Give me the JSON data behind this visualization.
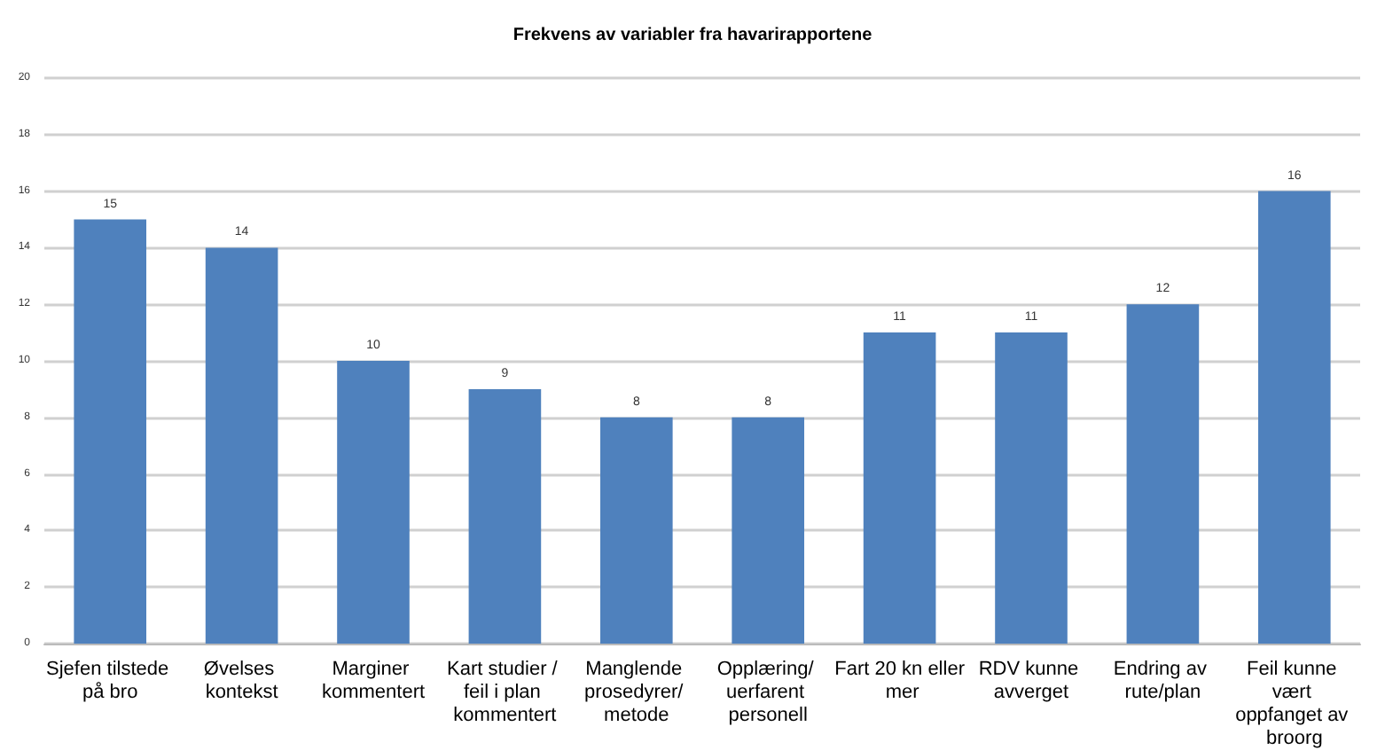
{
  "chart_data": {
    "type": "bar",
    "title": "Frekvens av variabler fra havarirapportene",
    "categories": [
      "Sjefen tilstede på bro",
      "Øvelses kontekst",
      "Marginer kommentert",
      "Kart studier / feil i plan kommentert",
      "Manglende prosedyrer/ metode",
      "Opplæring/ uerfarent personell",
      "Fart 20 kn eller mer",
      "RDV kunne avverget",
      "Endring av rute/plan",
      "Feil kunne vært oppfanget av broorg"
    ],
    "values": [
      15,
      14,
      10,
      9,
      8,
      8,
      11,
      11,
      12,
      16
    ],
    "color": "#4f81bd",
    "ylim": [
      0,
      20
    ],
    "yticks": [
      0,
      2,
      4,
      6,
      8,
      10,
      12,
      14,
      16,
      18,
      20
    ],
    "grid": "y",
    "data_labels": true
  }
}
